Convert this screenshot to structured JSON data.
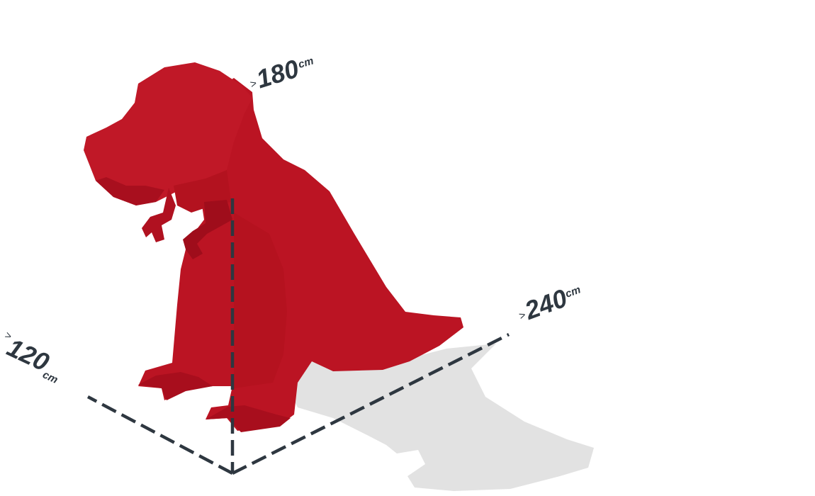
{
  "dimensions": {
    "height": {
      "prefix": ">",
      "value": "180",
      "unit": "cm"
    },
    "length": {
      "prefix": ">",
      "value": "240",
      "unit": "cm"
    },
    "width": {
      "prefix": ">",
      "value": "120",
      "unit": "cm"
    }
  },
  "colors": {
    "body": "#bb1423",
    "body_dark": "#a10e1c",
    "body_light": "#c91f2e",
    "shadow": "#e2e2e2",
    "dimension_line": "#2e3740"
  }
}
